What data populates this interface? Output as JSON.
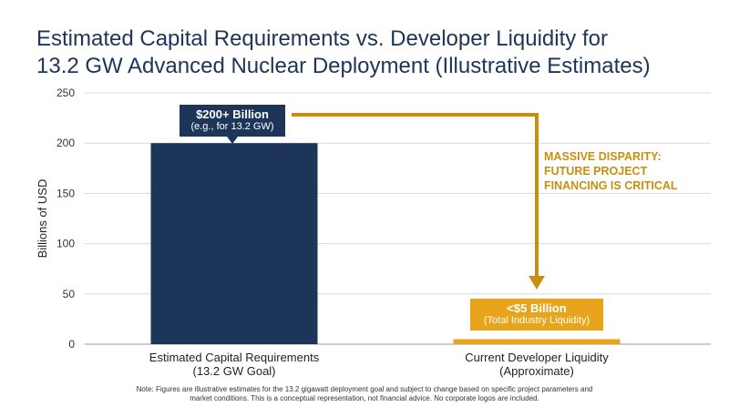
{
  "title_lines": [
    "Estimated Capital Requirements vs. Developer Liquidity for",
    "13.2 GW Advanced Nuclear Deployment (Illustrative Estimates)"
  ],
  "chart_data": {
    "type": "bar",
    "categories": [
      [
        "Estimated Capital Requirements",
        "(13.2 GW Goal)"
      ],
      [
        "Current Developer Liquidity",
        "(Approximate)"
      ]
    ],
    "values": [
      200,
      5
    ],
    "ylabel": "Billions of USD",
    "ylim": [
      0,
      250
    ],
    "yticks": [
      0,
      50,
      100,
      150,
      200,
      250
    ],
    "grid": true,
    "colors": {
      "bar_1": "#1c3559",
      "bar_2": "#e8a51c",
      "arrow": "#c88f0e",
      "grid": "#d9d9d9"
    },
    "annotations": {
      "bar_1_callout": {
        "main": "$200+ Billion",
        "sub": "(e.g., for 13.2 GW)"
      },
      "bar_2_callout": {
        "main": "<$5 Billion",
        "sub": "(Total Industry Liquidity)"
      },
      "disparity_lines": [
        "MASSIVE DISPARITY:",
        "FUTURE PROJECT",
        "FINANCING IS CRITICAL"
      ]
    }
  },
  "note_lines": [
    "Note: Figures are illustrative estimates for the 13.2 gigawatt deployment goal and subject to change based on specific project parameters and",
    "market conditions. This is a conceptual representation, not financial advice. No corporate logos are included."
  ]
}
